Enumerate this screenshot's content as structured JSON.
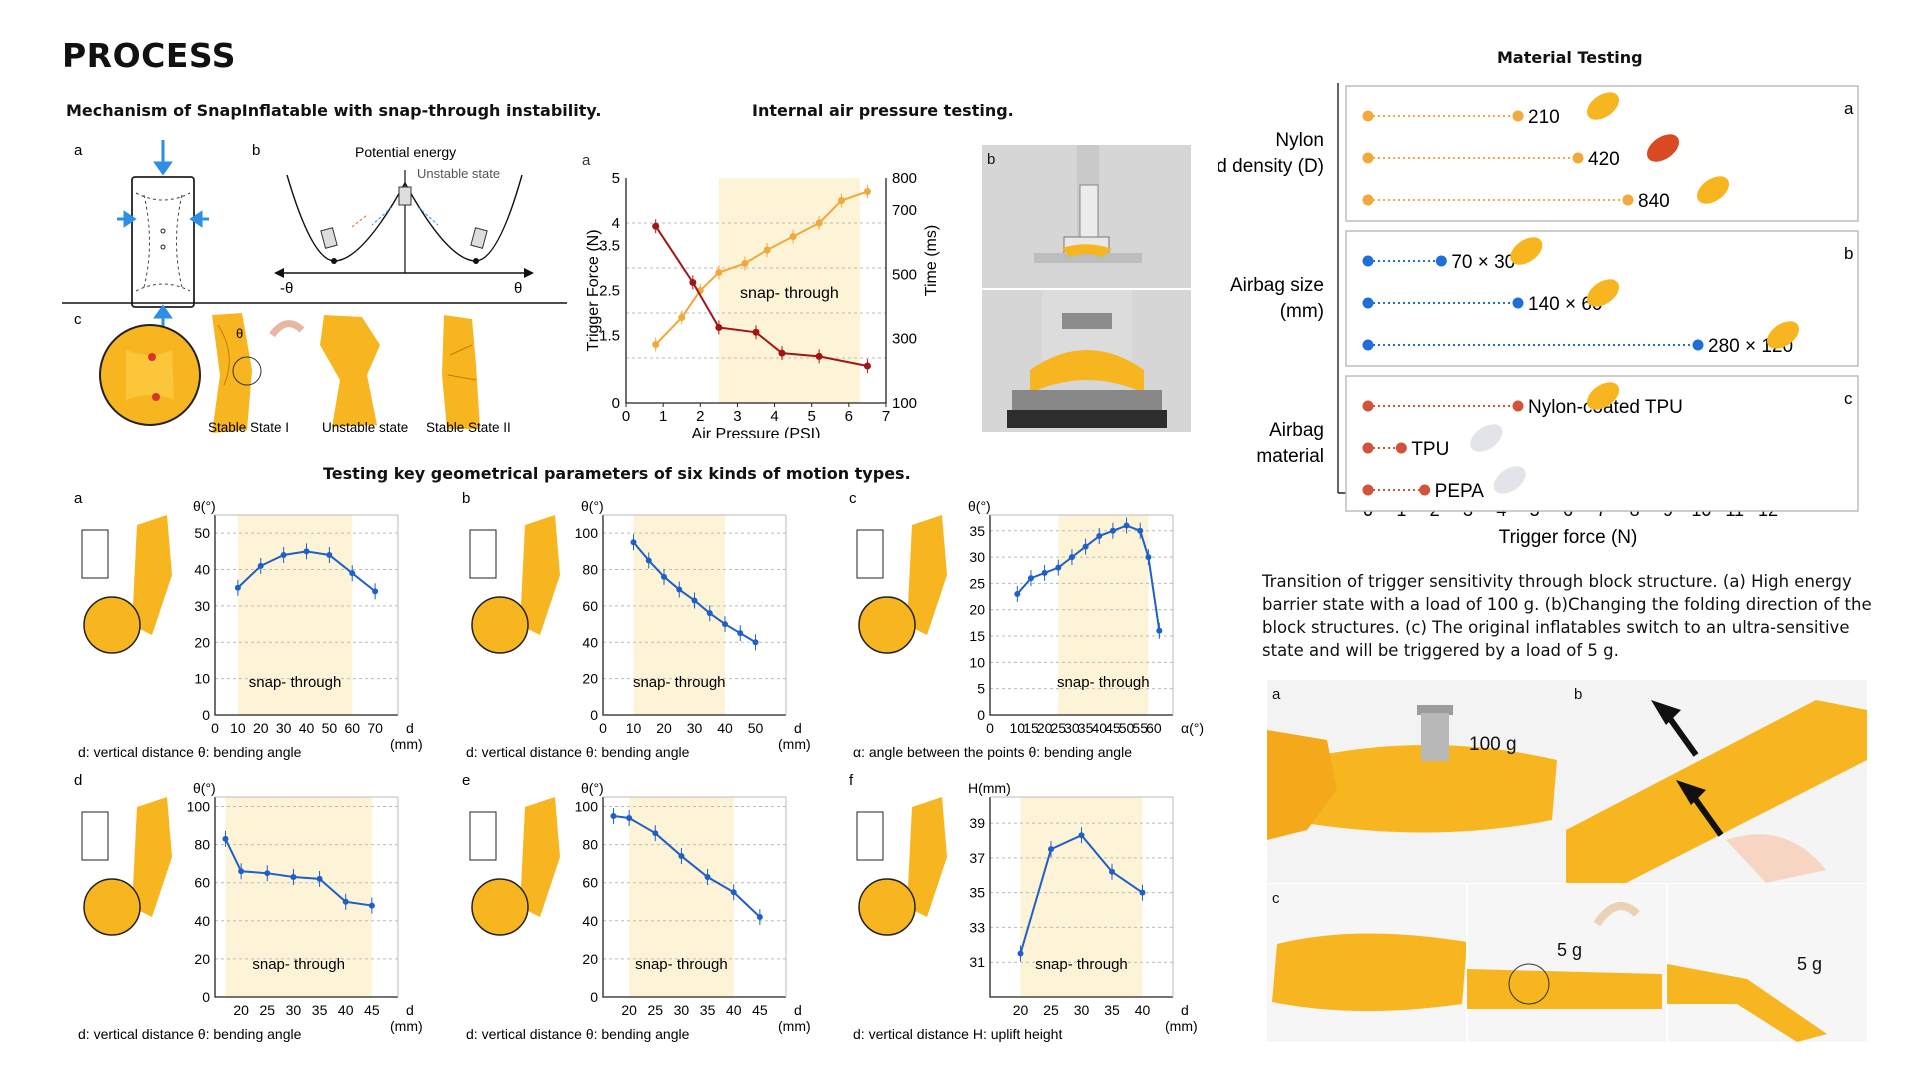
{
  "page": {
    "title": "PROCESS",
    "sections": {
      "mechanism": "Mechanism of SnapInflatable with snap-through instability.",
      "pressure": "Internal air pressure testing.",
      "geometry": "Testing key geometrical parameters of six kinds of motion types.",
      "material": "Material Testing"
    },
    "caption": "Transition of trigger sensitivity through block structure. (a) High energy barrier state with a load of 100 g. (b)Changing the folding direction of the block structures. (c) The original inflatables switch to an ultra-sensitive state and will be triggered by a load of 5 g."
  },
  "mechanism": {
    "panel_a": "a",
    "panel_b": "b",
    "panel_c": "c",
    "potential_label": "Potential energy",
    "unstable_label": "Unstable state",
    "neg_theta": "-θ",
    "pos_theta": "θ",
    "theta_small": "θ",
    "states": [
      "Stable State I",
      "Unstable state",
      "Stable State II"
    ]
  },
  "photos": {
    "weight_label": "100 g",
    "five_g_1": "5 g",
    "five_g_2": "5 g",
    "letters": [
      "a",
      "b",
      "c"
    ]
  },
  "pressure_chart": {
    "panel": "a",
    "photo_panel": "b",
    "band_label": "snap- through",
    "chart_data": {
      "type": "line",
      "xlabel": "Air Pressure (PSI)",
      "ylabel_left": "Trigger Force (N)",
      "ylabel_right": "Time (ms)",
      "xlim": [
        0,
        7
      ],
      "ylim_left": [
        0,
        5
      ],
      "ylim_right": [
        100,
        800
      ],
      "x_ticks": [
        "0",
        "1",
        "2",
        "3",
        "4",
        "5",
        "6",
        "7"
      ],
      "y_ticks_left": [
        "0",
        "1.5",
        "2.5",
        "3.5",
        "4",
        "5"
      ],
      "y_ticks_right": [
        "100",
        "300",
        "500",
        "700",
        "800"
      ],
      "band": [
        2.5,
        6.3
      ],
      "series": [
        {
          "name": "Trigger Force (N)",
          "color": "#f2a93b",
          "axis": "left",
          "x": [
            0.8,
            1.5,
            2.0,
            2.5,
            3.2,
            3.8,
            4.5,
            5.2,
            5.8,
            6.5
          ],
          "y": [
            1.3,
            1.9,
            2.5,
            2.9,
            3.1,
            3.4,
            3.7,
            4.0,
            4.5,
            4.7
          ]
        },
        {
          "name": "Time (ms)",
          "color": "#a31515",
          "axis": "right",
          "x": [
            0.8,
            1.8,
            2.5,
            3.5,
            4.2,
            5.2,
            6.5
          ],
          "y": [
            650,
            475,
            335,
            320,
            255,
            245,
            215
          ]
        }
      ]
    }
  },
  "geometry_charts": {
    "chart_data": [
      {
        "type": "line",
        "panel": "a",
        "ylabel": "θ(°)",
        "xlabel": "d",
        "unit": "(mm)",
        "xlim": [
          0,
          80
        ],
        "ylim": [
          0,
          55
        ],
        "band": [
          10,
          60
        ],
        "x_ticks": [
          "0",
          "10",
          "20",
          "30",
          "40",
          "50",
          "60",
          "70"
        ],
        "y_ticks": [
          "0",
          "10",
          "20",
          "30",
          "40",
          "50"
        ],
        "x": [
          10,
          20,
          30,
          40,
          50,
          60,
          70
        ],
        "y": [
          35,
          41,
          44,
          45,
          44,
          39,
          34
        ],
        "band_label": "snap- through",
        "legend_text": "d: vertical distance   θ: bending angle"
      },
      {
        "type": "line",
        "panel": "b",
        "ylabel": "θ(°)",
        "xlabel": "d",
        "unit": "(mm)",
        "xlim": [
          0,
          60
        ],
        "ylim": [
          0,
          110
        ],
        "band": [
          10,
          40
        ],
        "x_ticks": [
          "0",
          "10",
          "20",
          "30",
          "40",
          "50"
        ],
        "y_ticks": [
          "0",
          "20",
          "40",
          "60",
          "80",
          "100"
        ],
        "x": [
          10,
          15,
          20,
          25,
          30,
          35,
          40,
          45,
          50
        ],
        "y": [
          95,
          85,
          76,
          69,
          63,
          56,
          50,
          45,
          40
        ],
        "band_label": "snap- through",
        "legend_text": "d: vertical distance   θ: bending angle"
      },
      {
        "type": "line",
        "panel": "c",
        "ylabel": "θ(°)",
        "xlabel": "α(°)",
        "unit": "",
        "xlim": [
          0,
          67
        ],
        "ylim": [
          0,
          38
        ],
        "band": [
          25,
          58
        ],
        "x_ticks": [
          "0",
          "10",
          "15",
          "20",
          "25",
          "30",
          "35",
          "40",
          "45",
          "50",
          "55",
          "60"
        ],
        "y_ticks": [
          "0",
          "5",
          "10",
          "15",
          "20",
          "25",
          "30",
          "35"
        ],
        "x": [
          10,
          15,
          20,
          25,
          30,
          35,
          40,
          45,
          50,
          55,
          58,
          62
        ],
        "y": [
          23,
          26,
          27,
          28,
          30,
          32,
          34,
          35,
          36,
          35,
          30,
          16
        ],
        "band_label": "snap- through",
        "legend_text": "α: angle between the points   θ: bending angle"
      },
      {
        "type": "line",
        "panel": "d",
        "ylabel": "θ(°)",
        "xlabel": "d",
        "unit": "(mm)",
        "xlim": [
          15,
          50
        ],
        "ylim": [
          0,
          105
        ],
        "band": [
          17,
          45
        ],
        "x_ticks": [
          "",
          "20",
          "25",
          "30",
          "35",
          "40",
          "45"
        ],
        "y_ticks": [
          "0",
          "20",
          "40",
          "60",
          "80",
          "100"
        ],
        "x": [
          17,
          20,
          25,
          30,
          35,
          40,
          45
        ],
        "y": [
          83,
          66,
          65,
          63,
          62,
          50,
          48
        ],
        "band_label": "snap- through",
        "legend_text": "d: vertical distance   θ: bending angle"
      },
      {
        "type": "line",
        "panel": "e",
        "ylabel": "θ(°)",
        "xlabel": "d",
        "unit": "(mm)",
        "xlim": [
          15,
          50
        ],
        "ylim": [
          0,
          105
        ],
        "band": [
          20,
          40
        ],
        "x_ticks": [
          "",
          "20",
          "25",
          "30",
          "35",
          "40",
          "45"
        ],
        "y_ticks": [
          "0",
          "20",
          "40",
          "60",
          "80",
          "100"
        ],
        "x": [
          17,
          20,
          25,
          30,
          35,
          40,
          45
        ],
        "y": [
          95,
          94,
          86,
          74,
          63,
          55,
          42
        ],
        "band_label": "snap- through",
        "legend_text": "d: vertical distance   θ: bending angle"
      },
      {
        "type": "line",
        "panel": "f",
        "ylabel": "H(mm)",
        "xlabel": "d",
        "unit": "(mm)",
        "xlim": [
          15,
          45
        ],
        "ylim": [
          29,
          40.5
        ],
        "band": [
          20,
          40
        ],
        "x_ticks": [
          "",
          "20",
          "25",
          "30",
          "35",
          "40"
        ],
        "y_ticks": [
          "",
          "31",
          "33",
          "35",
          "37",
          "39"
        ],
        "x": [
          20,
          25,
          30,
          35,
          40
        ],
        "y": [
          31.5,
          37.5,
          38.3,
          36.2,
          35
        ],
        "band_label": "snap- through",
        "legend_text": "d: vertical distance   H: uplift height"
      }
    ]
  },
  "material_chart": {
    "title": "Material Testing",
    "chart_data": {
      "type": "dot-line",
      "xlabel": "Trigger force (N)",
      "xlim": [
        0,
        12
      ],
      "x_ticks": [
        "0",
        "1",
        "2",
        "3",
        "4",
        "5",
        "6",
        "7",
        "8",
        "9",
        "10",
        "11",
        "12"
      ],
      "groups": [
        {
          "label": "Nylon thread density (D)",
          "panel": "a",
          "color": "#f2a93b",
          "items": [
            {
              "label": "210",
              "value": 4.5
            },
            {
              "label": "420",
              "value": 6.3
            },
            {
              "label": "840",
              "value": 7.8
            }
          ]
        },
        {
          "label": "Airbag size (mm)",
          "panel": "b",
          "color": "#1f6fd6",
          "items": [
            {
              "label": "70 × 30",
              "value": 2.2
            },
            {
              "label": "140 × 60",
              "value": 4.5
            },
            {
              "label": "280 × 120",
              "value": 9.9
            }
          ]
        },
        {
          "label": "Airbag material",
          "panel": "c",
          "color": "#d0533a",
          "items": [
            {
              "label": "Nylon-coated TPU",
              "value": 4.5
            },
            {
              "label": "TPU",
              "value": 1.0
            },
            {
              "label": "PEPA",
              "value": 1.7
            }
          ]
        }
      ]
    }
  }
}
